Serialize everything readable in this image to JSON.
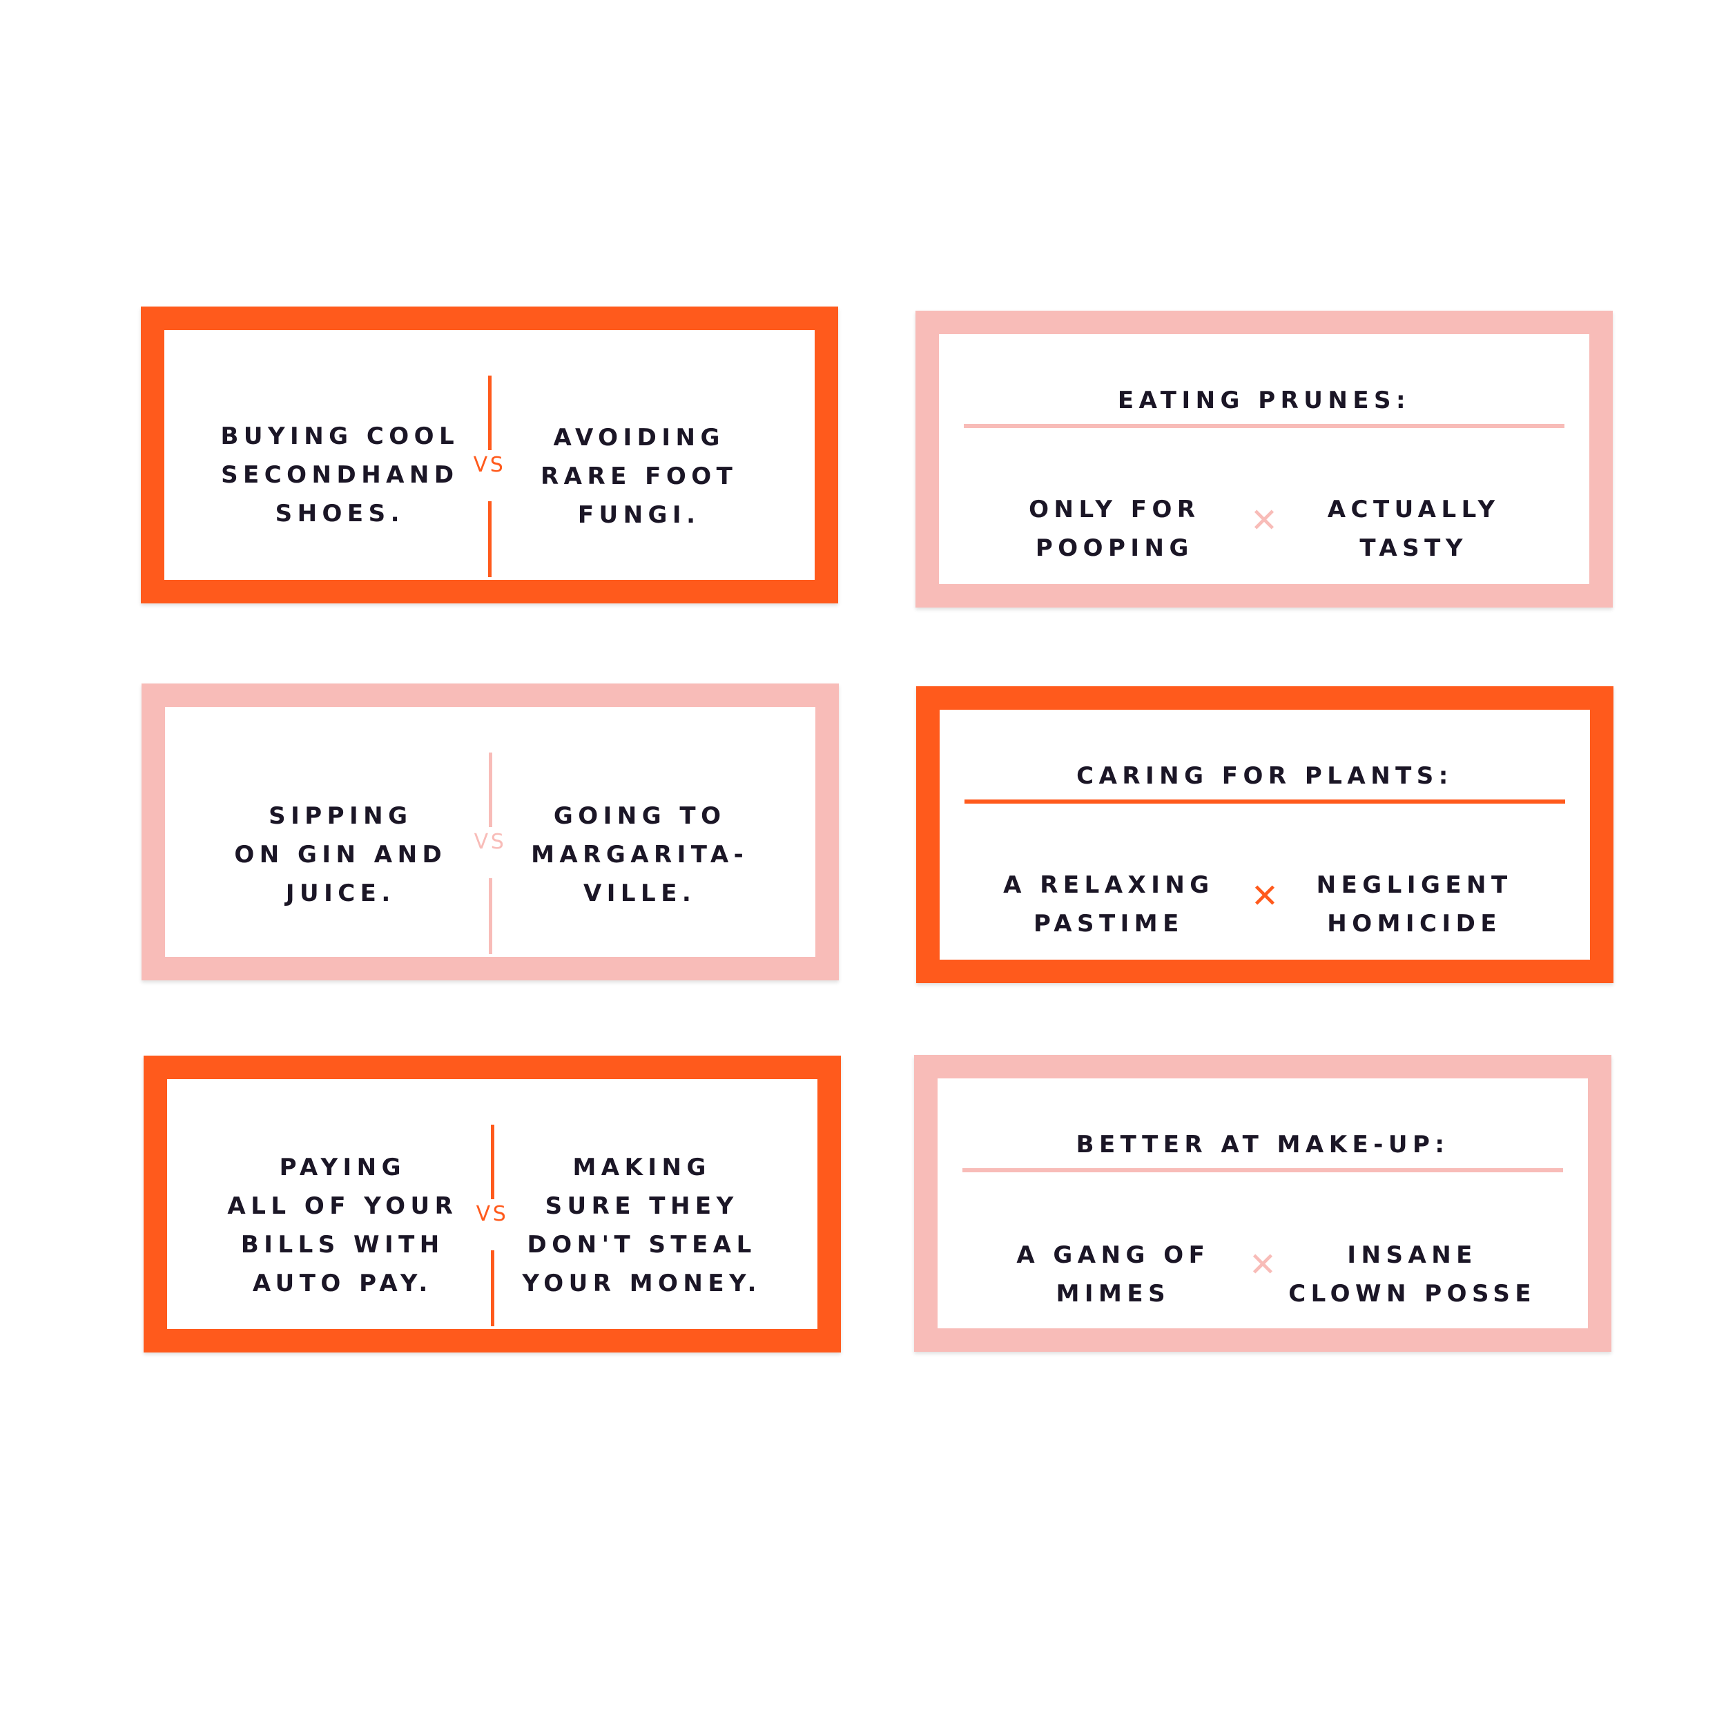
{
  "colors": {
    "orange": "#ff5a1c",
    "pink": "#f8bcb8",
    "text": "#1b1626"
  },
  "cards": [
    {
      "style": "orange",
      "type": "versus",
      "left": "BUYING COOL\nSECONDHAND\nSHOES.",
      "separator": "VS",
      "right": "AVOIDING\nRARE FOOT\nFUNGI."
    },
    {
      "style": "pink",
      "type": "titled",
      "title": "EATING PRUNES:",
      "left": "ONLY FOR\nPOOPING",
      "separator_icon": "x-icon",
      "right": "ACTUALLY\nTASTY"
    },
    {
      "style": "pink",
      "type": "versus",
      "left": "SIPPING\nON GIN AND\nJUICE.",
      "separator": "VS",
      "right": "GOING TO\nMARGARITA-\nVILLE."
    },
    {
      "style": "orange",
      "type": "titled",
      "title": "CARING FOR PLANTS:",
      "left": "A RELAXING\nPASTIME",
      "separator_icon": "x-icon",
      "right": "NEGLIGENT\nHOMICIDE"
    },
    {
      "style": "orange",
      "type": "versus",
      "left": "PAYING\nALL OF YOUR\nBILLS WITH\nAUTO PAY.",
      "separator": "VS",
      "right": "MAKING\nSURE THEY\nDON'T STEAL\nYOUR MONEY."
    },
    {
      "style": "pink",
      "type": "titled",
      "title": "BETTER AT MAKE-UP:",
      "left": "A GANG OF\nMIMES",
      "separator_icon": "x-icon",
      "right": "INSANE\nCLOWN POSSE"
    }
  ]
}
